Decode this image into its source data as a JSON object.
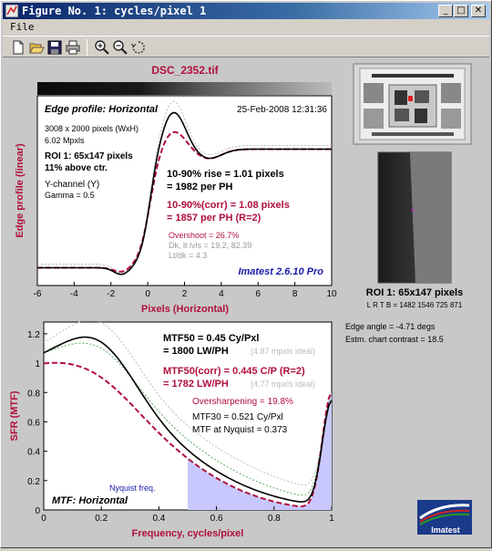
{
  "window": {
    "title": "Figure No. 1: cycles/pixel 1"
  },
  "menu": {
    "file": "File"
  },
  "toolbar": {
    "icons": [
      "new-icon",
      "open-icon",
      "save-icon",
      "print-icon",
      "zoom-in-icon",
      "zoom-out-icon",
      "rotate-icon"
    ]
  },
  "figure": {
    "filename": "DSC_2352.tif",
    "edge": {
      "title": "Edge profile: Horizontal",
      "date": "25-Feb-2008 12:31:36",
      "size": "3008 x 2000 pixels (WxH)",
      "mpxls": "6.02 Mpxls",
      "roi": "ROI 1:  65x147 pixels",
      "above": "11% above ctr.",
      "channel": "Y-channel  (Y)",
      "gamma": "Gamma = 0.5",
      "rise": "10-90% rise = 1.01 pixels",
      "per_ph": "= 1982 per PH",
      "rise_corr": "10-90%(corr) = 1.08 pixels",
      "per_ph_corr": "= 1857 per PH   (R=2)",
      "overshoot": "Overshoot = 26.7%",
      "dk": "Dk, lt lvls = 19.2, 82.39",
      "ltdk": "Lt/dk = 4.3",
      "version": "Imatest 2.6.10 Pro",
      "ylabel": "Edge profile (linear)",
      "xlabel": "Pixels (Horizontal)",
      "xticks": [
        "-6",
        "-4",
        "-2",
        "0",
        "2",
        "4",
        "6",
        "8",
        "10"
      ]
    },
    "mtf": {
      "mtf50": "MTF50 = 0.45 Cy/Pxl",
      "lwph": "= 1800 LW/PH",
      "ideal1": "(4.87 mpxls ideal)",
      "mtf50corr": "MTF50(corr) = 0.445 C/P   (R=2)",
      "lwph_corr": "= 1782 LW/PH",
      "ideal2": "(4.77 mpxls ideal)",
      "oversharp": "Oversharpening = 19.8%",
      "mtf30": "MTF30 = 0.521 Cy/Pxl",
      "nyq_mtf": "MTF at Nyquist = 0.373",
      "nyq_label": "Nyquist freq.",
      "title": "MTF: Horizontal",
      "ylabel": "SFR (MTF)",
      "xlabel": "Frequency, cycles/pixel",
      "xticks": [
        "0",
        "0.2",
        "0.4",
        "0.6",
        "0.8",
        "1"
      ],
      "yticks": [
        "0",
        "0.2",
        "0.4",
        "0.6",
        "0.8",
        "1",
        "1.2"
      ]
    },
    "side": {
      "roi": "ROI 1:  65x147 pixels",
      "lrtb": "L R  T B = 1482 1546  725 871",
      "angle": "Edge angle = -4.71 degs",
      "contrast": "Estm. chart contrast = 18.5",
      "logo": "Imatest"
    }
  },
  "colors": {
    "measured": "#000000",
    "corrected": "#b0103c",
    "ideal": "#5faa5f",
    "nyquist_fill": "#c8c8ff",
    "version": "#1a1aa8"
  }
}
